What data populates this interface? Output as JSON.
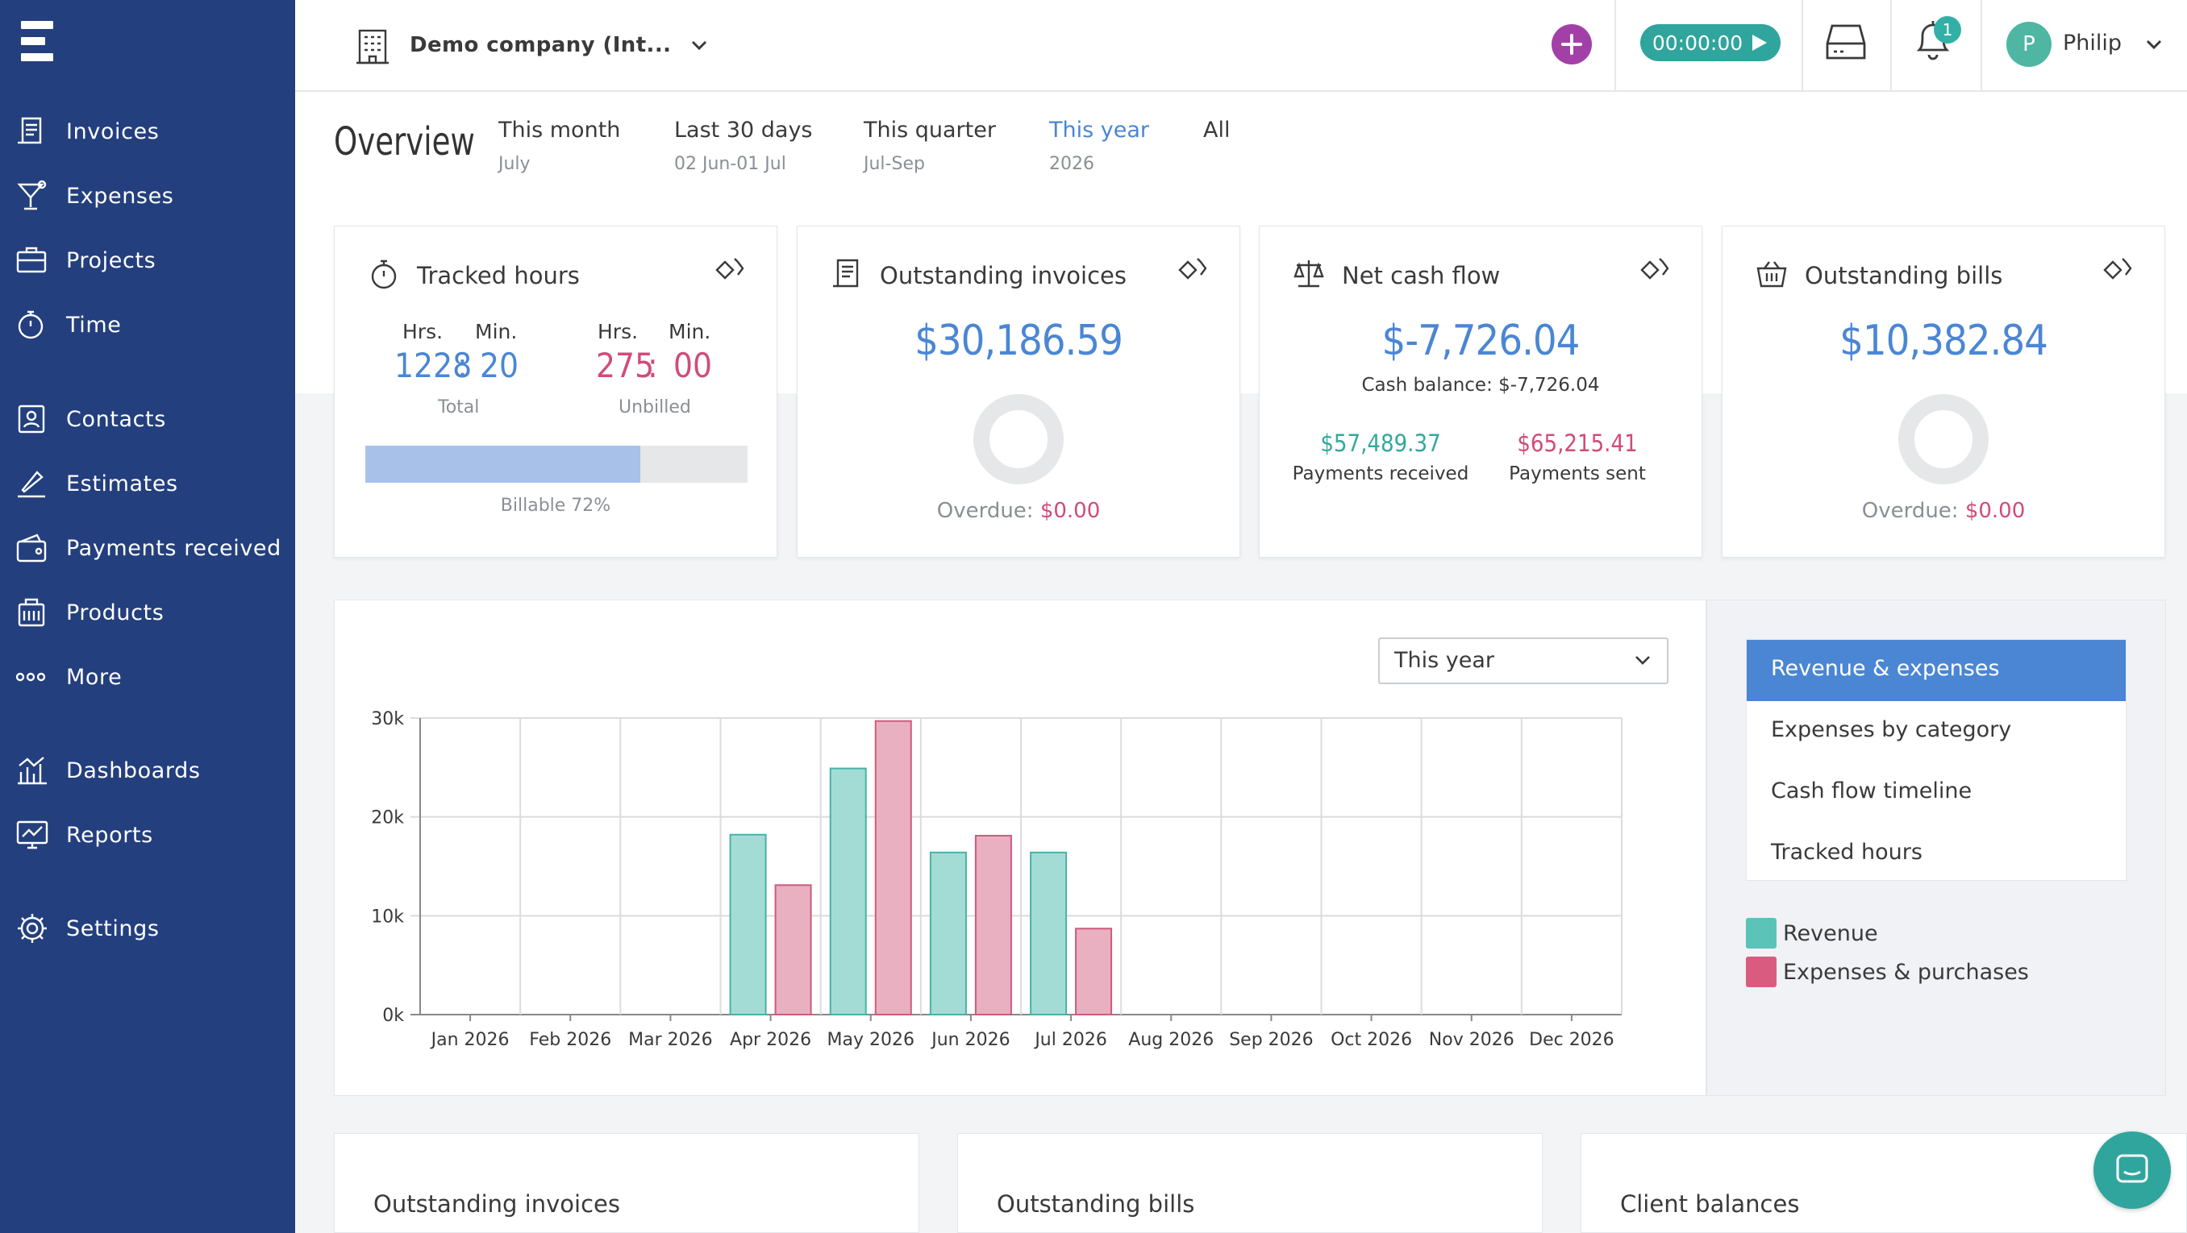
{
  "sidebar": {
    "items": [
      {
        "label": "Invoices",
        "icon": "invoice-icon"
      },
      {
        "label": "Expenses",
        "icon": "cocktail-icon"
      },
      {
        "label": "Projects",
        "icon": "briefcase-icon"
      },
      {
        "label": "Time",
        "icon": "stopwatch-icon"
      },
      {
        "label": "Contacts",
        "icon": "contacts-icon"
      },
      {
        "label": "Estimates",
        "icon": "pen-ruler-icon"
      },
      {
        "label": "Payments received",
        "icon": "wallet-icon"
      },
      {
        "label": "Products",
        "icon": "products-icon"
      },
      {
        "label": "More",
        "icon": "more-dots-icon"
      },
      {
        "label": "Dashboards",
        "icon": "dashboard-icon"
      },
      {
        "label": "Reports",
        "icon": "report-icon"
      },
      {
        "label": "Settings",
        "icon": "gear-icon"
      }
    ]
  },
  "topbar": {
    "company": "Demo company (Int...",
    "timer": "00:00:00",
    "notifications_count": "1",
    "avatar_initial": "P",
    "user_name": "Philip"
  },
  "overview": {
    "title": "Overview",
    "periods": [
      {
        "label": "This month",
        "sub": "July"
      },
      {
        "label": "Last 30 days",
        "sub": "02 Jun-01 Jul"
      },
      {
        "label": "This quarter",
        "sub": "Jul-Sep"
      },
      {
        "label": "This year",
        "sub": "2026"
      },
      {
        "label": "All",
        "sub": ""
      }
    ],
    "active_period": "This year"
  },
  "cards": {
    "tracked": {
      "title": "Tracked hours",
      "hrs_label": "Hrs.",
      "min_label": "Min.",
      "total_hrs": "1228",
      "total_min": "20",
      "total_label": "Total",
      "unbilled_hrs": "275",
      "unbilled_min": "00",
      "unbilled_label": "Unbilled",
      "billable_label": "Billable 72%",
      "billable_fraction": 0.72
    },
    "outstanding_invoices": {
      "title": "Outstanding invoices",
      "amount": "$30,186.59",
      "overdue_label": "Overdue:",
      "overdue_value": "$0.00"
    },
    "net_cash": {
      "title": "Net cash flow",
      "amount": "$-7,726.04",
      "balance": "Cash balance: $-7,726.04",
      "received": "$57,489.37",
      "received_label": "Payments received",
      "sent": "$65,215.41",
      "sent_label": "Payments sent"
    },
    "outstanding_bills": {
      "title": "Outstanding bills",
      "amount": "$10,382.84",
      "overdue_label": "Overdue:",
      "overdue_value": "$0.00"
    }
  },
  "chart_controls": {
    "range_select": "This year",
    "reports": [
      "Revenue & expenses",
      "Expenses by category",
      "Cash flow timeline",
      "Tracked hours"
    ],
    "active_report": "Revenue & expenses"
  },
  "chart_data": {
    "type": "bar",
    "categories": [
      "Jan 2026",
      "Feb 2026",
      "Mar 2026",
      "Apr 2026",
      "May 2026",
      "Jun 2026",
      "Jul 2026",
      "Aug 2026",
      "Sep 2026",
      "Oct 2026",
      "Nov 2026",
      "Dec 2026"
    ],
    "series": [
      {
        "name": "Revenue",
        "color": "#a3dcd5",
        "stroke": "#46b3a8",
        "values": [
          0,
          0,
          0,
          18200,
          24900,
          16400,
          16400,
          0,
          0,
          0,
          0,
          0
        ]
      },
      {
        "name": "Expenses & purchases",
        "color": "#e8b0c1",
        "stroke": "#cf5a7d",
        "values": [
          0,
          0,
          0,
          13100,
          29700,
          18100,
          8700,
          0,
          0,
          0,
          0,
          0
        ]
      }
    ],
    "yticks": [
      "0k",
      "10k",
      "20k",
      "30k"
    ],
    "ylim": [
      0,
      30000
    ],
    "grid": true
  },
  "bottom": {
    "titles": [
      "Outstanding invoices",
      "Outstanding bills",
      "Client balances"
    ]
  },
  "colors": {
    "sidebar": "#233f7e",
    "accent": "#4a86d4",
    "teal": "#2fa59d",
    "pink": "#d14b78",
    "purple": "#a240a8"
  }
}
